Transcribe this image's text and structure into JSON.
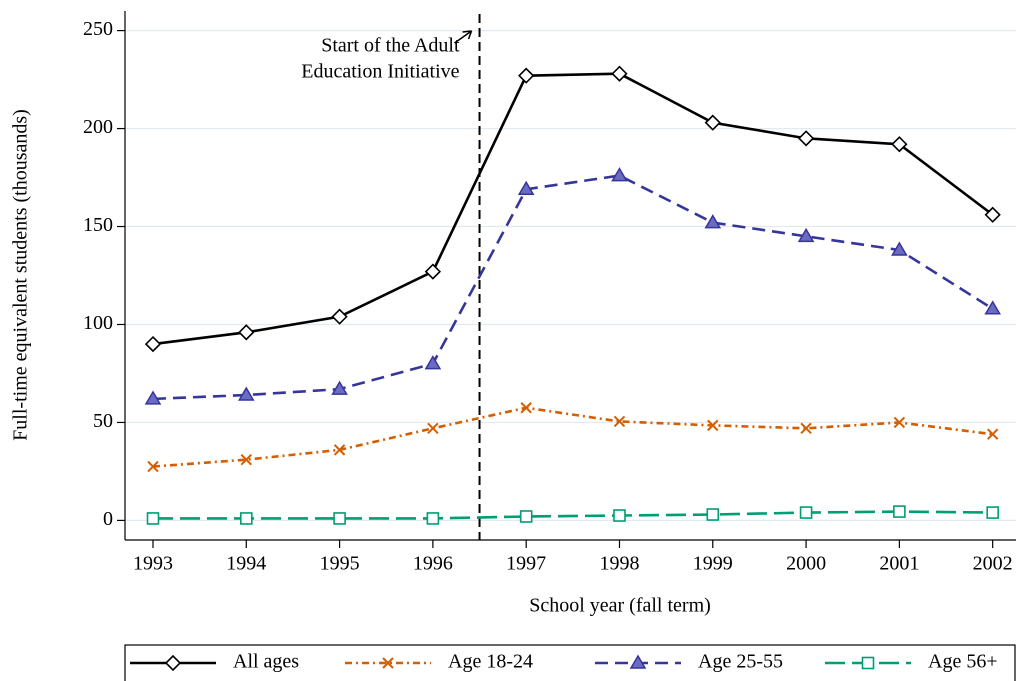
{
  "chart_data": {
    "type": "line",
    "x_label": "School year (fall term)",
    "y_label": "Full-time equivalent students (thousands)",
    "x": [
      1993,
      1994,
      1995,
      1996,
      1997,
      1998,
      1999,
      2000,
      2001,
      2002
    ],
    "xlim": [
      1992.7,
      2002.25
    ],
    "xticks": [
      1993,
      1994,
      1995,
      1996,
      1997,
      1998,
      1999,
      2000,
      2001,
      2002
    ],
    "ylim": [
      -10,
      260
    ],
    "yticks": [
      0,
      50,
      100,
      150,
      200,
      250
    ],
    "grid": true,
    "vline": 1996.5,
    "annotation": [
      "Start of the Adult",
      "Education Initiative"
    ],
    "legend": "bottom",
    "series": [
      {
        "name": "All ages",
        "color": "#000000",
        "marker": "diamond",
        "dash": "solid",
        "values": [
          90,
          96,
          104,
          127,
          227,
          228,
          203,
          195,
          192,
          156
        ]
      },
      {
        "name": "Age 18-24",
        "color": "#d55e00",
        "marker": "x",
        "dash": "dashdot",
        "values": [
          27.5,
          31,
          36,
          47,
          57.5,
          50.5,
          48.5,
          47,
          50,
          44
        ]
      },
      {
        "name": "Age 25-55",
        "color": "#35359a",
        "marker": "triangle",
        "dash": "dash",
        "values": [
          62,
          64,
          67,
          80,
          169,
          176,
          152,
          145,
          138,
          108
        ]
      },
      {
        "name": "Age 56+",
        "color": "#009e73",
        "marker": "square",
        "dash": "longdash",
        "values": [
          1,
          1,
          1,
          1,
          2,
          2.5,
          3,
          4,
          4.5,
          4
        ]
      }
    ]
  }
}
